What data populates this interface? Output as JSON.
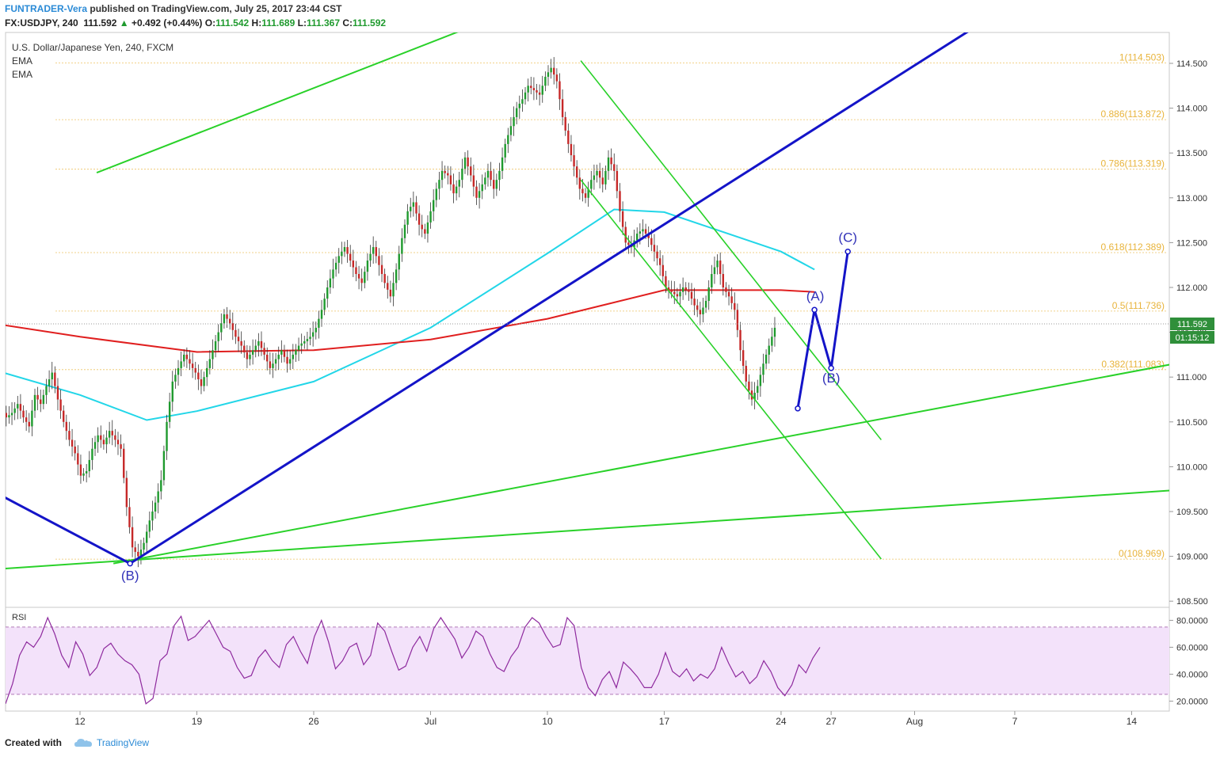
{
  "header": {
    "author": "FUNTRADER-Vera",
    "published": "published on TradingView.com, July 25, 2017 23:44 CST",
    "symbol": "FX:USDJPY, 240",
    "last": "111.592",
    "change_arrow": "▲",
    "change": "+0.492 (+0.44%)",
    "o_label": "O:",
    "o": "111.542",
    "h_label": "H:",
    "h": "111.689",
    "l_label": "L:",
    "l": "111.367",
    "c_label": "C:",
    "c": "111.592"
  },
  "footer": {
    "created_with": "Created with",
    "brand": "TradingView"
  },
  "colors": {
    "fib": "#e8b43c",
    "green_line": "#29d129",
    "blue_line": "#1414c8",
    "ema_fast": "#22d6e8",
    "ema_slow": "#e01f1f",
    "rsi_line": "#8e2a9e",
    "rsi_band": "#f3e2fa",
    "up_candle": "#1f9a2e",
    "down_candle": "#c62828"
  },
  "chart_data": {
    "type": "line",
    "title": "U.S. Dollar/Japanese Yen, 240, FXCM",
    "indicators": [
      "EMA",
      "EMA"
    ],
    "last_price_label": "111.592",
    "countdown": "01:15:12",
    "x_ticks": [
      "12",
      "19",
      "26",
      "Jul",
      "10",
      "17",
      "24",
      "27",
      "Aug",
      "7",
      "14"
    ],
    "y_ticks": [
      "114.500",
      "114.000",
      "113.500",
      "113.000",
      "112.500",
      "112.000",
      "111.500",
      "111.000",
      "110.500",
      "110.000",
      "109.500",
      "109.000",
      "108.500"
    ],
    "ylim": [
      108.45,
      114.95
    ],
    "fib_levels": [
      {
        "label": "1(114.503)",
        "value": 114.503
      },
      {
        "label": "0.886(113.872)",
        "value": 113.872
      },
      {
        "label": "0.786(113.319)",
        "value": 113.319
      },
      {
        "label": "0.618(112.389)",
        "value": 112.389
      },
      {
        "label": "0.5(111.736)",
        "value": 111.736
      },
      {
        "label": "0.382(111.083)",
        "value": 111.083
      },
      {
        "label": "0(108.969)",
        "value": 108.969
      }
    ],
    "wave_labels": [
      {
        "text": "(B)",
        "x": "Jun 15",
        "y": 108.95
      },
      {
        "text": "(A)",
        "x": "Jul 26",
        "y": 111.75
      },
      {
        "text": "(B)",
        "x": "Jul 27",
        "y": 111.1
      },
      {
        "text": "(C)",
        "x": "Jul 28",
        "y": 112.4
      }
    ],
    "ema_slow": [
      [
        "Jun 5",
        111.65
      ],
      [
        "Jun 12",
        111.45
      ],
      [
        "Jun 19",
        111.28
      ],
      [
        "Jun 26",
        111.3
      ],
      [
        "Jul 3",
        111.42
      ],
      [
        "Jul 10",
        111.65
      ],
      [
        "Jul 17",
        111.97
      ],
      [
        "Jul 24",
        111.97
      ],
      [
        "Jul 26",
        111.95
      ]
    ],
    "ema_fast": [
      [
        "Jun 5",
        111.18
      ],
      [
        "Jun 12",
        110.8
      ],
      [
        "Jun 16",
        110.52
      ],
      [
        "Jun 19",
        110.62
      ],
      [
        "Jun 26",
        110.95
      ],
      [
        "Jul 3",
        111.55
      ],
      [
        "Jul 10",
        112.38
      ],
      [
        "Jul 14",
        112.87
      ],
      [
        "Jul 17",
        112.84
      ],
      [
        "Jul 24",
        112.4
      ],
      [
        "Jul 26",
        112.2
      ]
    ],
    "rsi": {
      "title": "RSI",
      "y_ticks": [
        "80.0000",
        "60.0000",
        "40.0000",
        "20.0000"
      ],
      "ylim": [
        10,
        90
      ],
      "bands": [
        25,
        75
      ],
      "values": [
        18,
        33,
        54,
        64,
        60,
        68,
        82,
        70,
        54,
        45,
        64,
        55,
        39,
        45,
        59,
        63,
        55,
        50,
        47,
        40,
        18,
        22,
        50,
        55,
        76,
        83,
        65,
        68,
        74,
        80,
        70,
        60,
        57,
        45,
        37,
        39,
        52,
        58,
        50,
        45,
        62,
        68,
        57,
        48,
        68,
        80,
        64,
        44,
        50,
        60,
        63,
        47,
        54,
        78,
        72,
        57,
        43,
        46,
        60,
        68,
        57,
        74,
        82,
        74,
        66,
        52,
        60,
        72,
        68,
        55,
        45,
        42,
        53,
        60,
        75,
        82,
        78,
        68,
        60,
        62,
        82,
        76,
        45,
        30,
        24,
        36,
        42,
        30,
        49,
        44,
        38,
        30,
        30,
        40,
        56,
        42,
        38,
        44,
        35,
        40,
        37,
        44,
        60,
        48,
        38,
        42,
        33,
        38,
        50,
        42,
        30,
        24,
        32,
        47,
        41,
        52,
        60
      ]
    },
    "candles_ohlc_4h": "approximate, drawn from embedded series"
  },
  "price_series": [
    110.05,
    110.1,
    109.95,
    110.2,
    110.35,
    110.25,
    110.5,
    110.65,
    110.55,
    110.6,
    110.7,
    110.55,
    110.45,
    110.8,
    110.7,
    110.9,
    111.05,
    110.75,
    110.5,
    110.3,
    110.15,
    109.9,
    109.95,
    110.2,
    110.35,
    110.25,
    110.4,
    110.3,
    110.2,
    109.55,
    109.1,
    109.0,
    109.15,
    109.4,
    109.6,
    109.85,
    110.5,
    110.95,
    111.1,
    111.25,
    111.15,
    111.05,
    110.9,
    111.1,
    111.3,
    111.5,
    111.7,
    111.6,
    111.45,
    111.35,
    111.2,
    111.3,
    111.4,
    111.25,
    111.1,
    111.2,
    111.3,
    111.15,
    111.25,
    111.35,
    111.4,
    111.45,
    111.55,
    111.75,
    112.0,
    112.2,
    112.35,
    112.45,
    112.3,
    112.15,
    112.05,
    112.3,
    112.45,
    112.25,
    112.05,
    111.9,
    112.2,
    112.55,
    112.85,
    112.95,
    112.7,
    112.6,
    112.85,
    113.1,
    113.3,
    113.25,
    113.05,
    113.2,
    113.45,
    113.25,
    113.0,
    113.15,
    113.3,
    113.1,
    113.3,
    113.6,
    113.8,
    114.0,
    114.1,
    114.25,
    114.2,
    114.15,
    114.35,
    114.45,
    114.3,
    113.9,
    113.6,
    113.35,
    113.1,
    113.0,
    113.2,
    113.3,
    113.15,
    113.45,
    113.3,
    112.85,
    112.5,
    112.45,
    112.6,
    112.65,
    112.55,
    112.4,
    112.25,
    112.0,
    111.95,
    111.9,
    112.0,
    111.95,
    111.8,
    111.7,
    111.85,
    112.15,
    112.3,
    112.0,
    111.9,
    111.75,
    111.3,
    110.95,
    110.75,
    110.9,
    111.15,
    111.35,
    111.55
  ]
}
